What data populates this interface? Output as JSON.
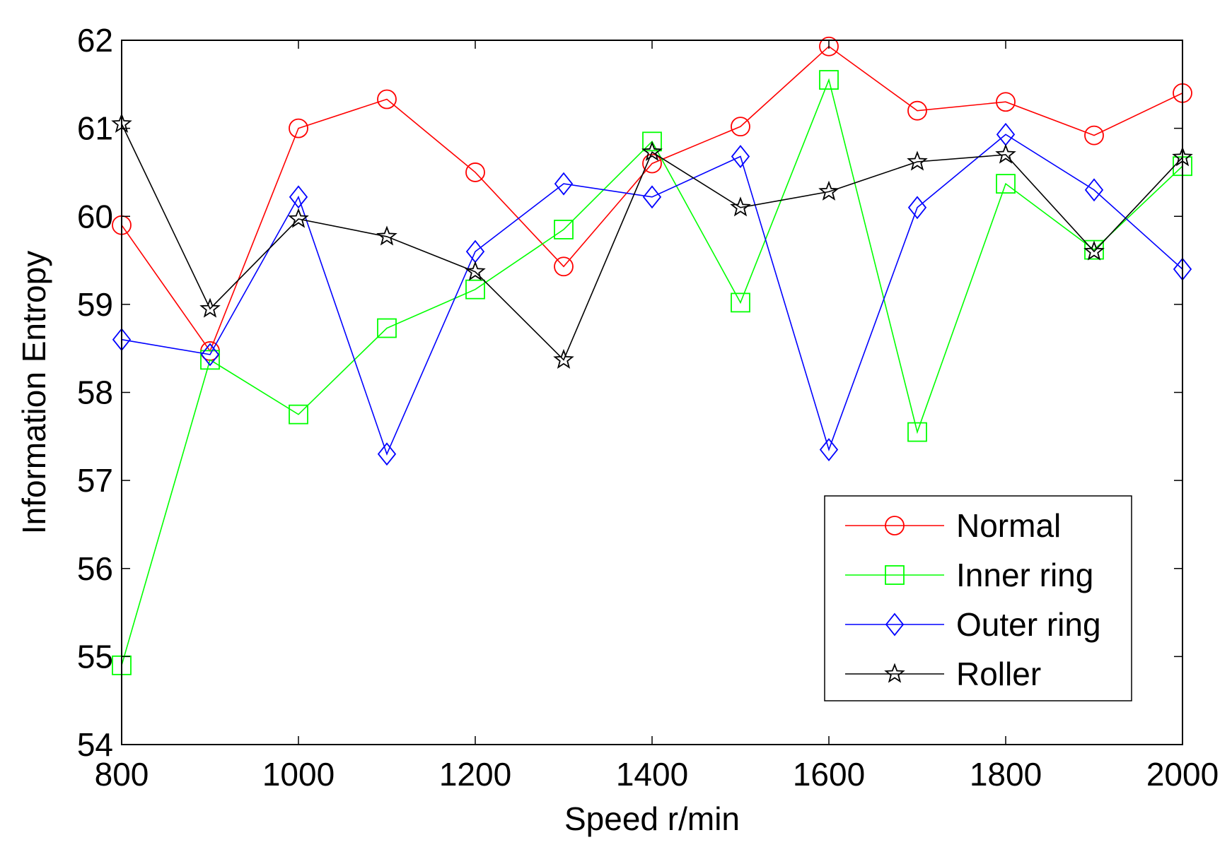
{
  "chart_data": {
    "type": "line",
    "title": "",
    "xlabel": "Speed r/min",
    "ylabel": "Information Entropy",
    "xlim": [
      800,
      2000
    ],
    "ylim": [
      54,
      62
    ],
    "xticks": [
      800,
      1000,
      1200,
      1400,
      1600,
      1800,
      2000
    ],
    "yticks": [
      54,
      55,
      56,
      57,
      58,
      59,
      60,
      61,
      62
    ],
    "grid": false,
    "legend_position": "bottom-right",
    "x": [
      800,
      900,
      1000,
      1100,
      1200,
      1300,
      1400,
      1500,
      1600,
      1700,
      1800,
      1900,
      2000
    ],
    "series": [
      {
        "name": "Normal",
        "color": "#ff0000",
        "marker": "circle",
        "values": [
          59.9,
          58.47,
          61.0,
          61.33,
          60.5,
          59.43,
          60.6,
          61.02,
          61.93,
          61.2,
          61.3,
          60.92,
          61.4
        ]
      },
      {
        "name": "Inner ring",
        "color": "#00ff00",
        "marker": "square",
        "values": [
          54.9,
          58.37,
          57.75,
          58.73,
          59.17,
          59.85,
          60.85,
          59.02,
          61.55,
          57.55,
          60.37,
          59.62,
          60.57
        ]
      },
      {
        "name": "Outer ring",
        "color": "#0000ff",
        "marker": "diamond",
        "values": [
          58.6,
          58.43,
          60.22,
          57.3,
          59.6,
          60.37,
          60.22,
          60.68,
          57.35,
          60.1,
          60.93,
          60.3,
          59.4
        ]
      },
      {
        "name": "Roller",
        "color": "#000000",
        "marker": "star",
        "values": [
          61.05,
          58.95,
          59.97,
          59.77,
          59.37,
          58.37,
          60.73,
          60.1,
          60.28,
          60.62,
          60.7,
          59.6,
          60.67
        ]
      }
    ]
  }
}
